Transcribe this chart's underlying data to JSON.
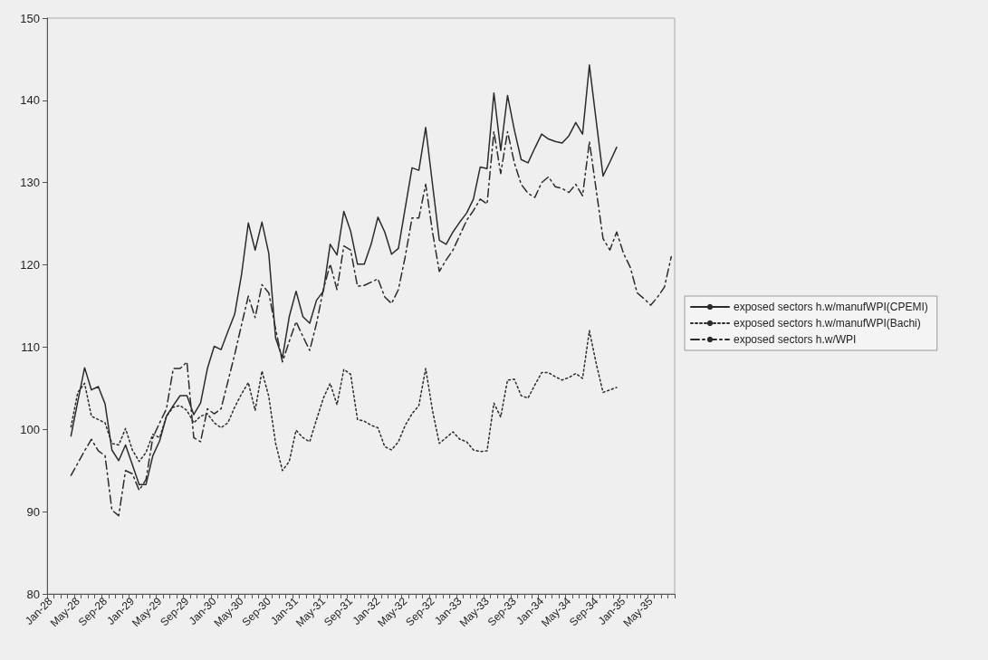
{
  "chart_data": {
    "type": "line",
    "categories": [
      "Jan-28",
      null,
      null,
      null,
      "May-28",
      null,
      null,
      null,
      "Sep-28",
      null,
      null,
      null,
      "Jan-29",
      null,
      null,
      null,
      "May-29",
      null,
      null,
      null,
      "Sep-29",
      null,
      null,
      null,
      "Jan-30",
      null,
      null,
      null,
      "May-30",
      null,
      null,
      null,
      "Sep-30",
      null,
      null,
      null,
      "Jan-31",
      null,
      null,
      null,
      "May-31",
      null,
      null,
      null,
      "Sep-31",
      null,
      null,
      null,
      "Jan-32",
      null,
      null,
      null,
      "May-32",
      null,
      null,
      null,
      "Sep-32",
      null,
      null,
      null,
      "Jan-33",
      null,
      null,
      null,
      "May-33",
      null,
      null,
      null,
      "Sep-33",
      null,
      null,
      null,
      "Jan-34",
      null,
      null,
      null,
      "May-34",
      null,
      null,
      null,
      "Sep-34",
      null,
      null,
      null,
      "Jan-35",
      null,
      null,
      null,
      "May-35",
      null,
      null,
      null
    ],
    "series": [
      {
        "name": "exposed sectors h.w/manufWPI(CPEMI)",
        "color": "#2b2b2b",
        "line_style": "solid",
        "values": [
          null,
          null,
          null,
          99.2,
          103.4,
          107.5,
          104.8,
          105.2,
          103.1,
          97.5,
          96.2,
          98.1,
          95.7,
          93.3,
          93.3,
          96.8,
          98.6,
          101.6,
          102.9,
          104.1,
          104.1,
          101.8,
          103.2,
          107.4,
          110.1,
          109.7,
          111.9,
          114.0,
          118.8,
          125.1,
          121.8,
          125.2,
          121.4,
          111.1,
          108.7,
          113.7,
          116.8,
          113.7,
          112.9,
          115.7,
          116.8,
          122.5,
          121.2,
          126.5,
          124.1,
          120.1,
          120.1,
          122.5,
          125.8,
          124.0,
          121.3,
          122.0,
          126.9,
          131.8,
          131.5,
          136.7,
          129.8,
          123.0,
          122.5,
          124.0,
          125.2,
          126.3,
          128.0,
          131.9,
          131.7,
          140.9,
          133.9,
          140.6,
          136.4,
          132.8,
          132.4,
          134.2,
          135.9,
          135.3,
          135.0,
          134.8,
          135.7,
          137.3,
          135.9,
          144.3,
          137.5,
          130.8,
          132.5,
          134.3,
          null,
          null,
          null,
          null,
          null,
          null,
          null,
          null
        ]
      },
      {
        "name": "exposed sectors h.w/manufWPI(Bachi)",
        "color": "#2b2b2b",
        "line_style": "dotted",
        "values": [
          null,
          null,
          null,
          100.3,
          104.5,
          105.6,
          101.6,
          101.2,
          100.8,
          98.3,
          98.1,
          100.1,
          97.5,
          96.1,
          97.2,
          99.4,
          99.0,
          101.6,
          102.7,
          102.9,
          102.3,
          100.8,
          101.6,
          101.9,
          100.8,
          100.2,
          100.8,
          102.7,
          104.3,
          105.7,
          102.3,
          107.1,
          104.0,
          98.3,
          95.0,
          96.1,
          99.9,
          99.0,
          98.5,
          101.2,
          103.8,
          105.6,
          103.0,
          107.3,
          106.7,
          101.2,
          101.0,
          100.5,
          100.2,
          97.9,
          97.5,
          98.5,
          100.5,
          101.9,
          102.9,
          107.4,
          102.3,
          98.3,
          99.0,
          99.7,
          98.8,
          98.5,
          97.5,
          97.3,
          97.4,
          103.2,
          101.5,
          106.0,
          106.1,
          104.1,
          103.8,
          105.4,
          106.9,
          106.9,
          106.4,
          106.0,
          106.3,
          106.8,
          106.2,
          112.0,
          108.0,
          104.5,
          104.8,
          105.1,
          null,
          null,
          null,
          null,
          null,
          null,
          null,
          null
        ]
      },
      {
        "name": "exposed sectors h.w/WPI",
        "color": "#2b2b2b",
        "line_style": "dashed",
        "values": [
          null,
          null,
          null,
          94.4,
          95.9,
          97.4,
          98.8,
          97.4,
          96.8,
          90.2,
          89.5,
          95.0,
          94.6,
          92.6,
          93.9,
          99.0,
          100.8,
          102.5,
          107.4,
          107.4,
          108.2,
          99.0,
          98.5,
          102.5,
          101.9,
          102.5,
          105.8,
          109.1,
          112.7,
          116.2,
          113.6,
          117.6,
          116.6,
          112.2,
          108.2,
          110.7,
          113.1,
          111.3,
          109.6,
          112.9,
          117.0,
          120.1,
          117.0,
          122.3,
          121.8,
          117.4,
          117.5,
          117.9,
          118.3,
          116.1,
          115.3,
          117.0,
          121.0,
          125.7,
          125.7,
          129.8,
          124.0,
          119.2,
          120.6,
          121.8,
          123.6,
          125.4,
          126.6,
          128.0,
          127.4,
          136.2,
          131.1,
          136.2,
          132.4,
          129.8,
          128.7,
          128.2,
          130.0,
          130.7,
          129.5,
          129.3,
          128.8,
          129.8,
          128.4,
          135.0,
          129.1,
          123.2,
          121.8,
          124.0,
          121.4,
          119.7,
          116.6,
          115.9,
          115.1,
          116.1,
          117.3,
          121.0
        ]
      }
    ],
    "ylim": [
      80,
      150
    ],
    "yticks": [
      80,
      90,
      100,
      110,
      120,
      130,
      140,
      150
    ],
    "grid": false,
    "legend": "right",
    "marker": "none"
  }
}
